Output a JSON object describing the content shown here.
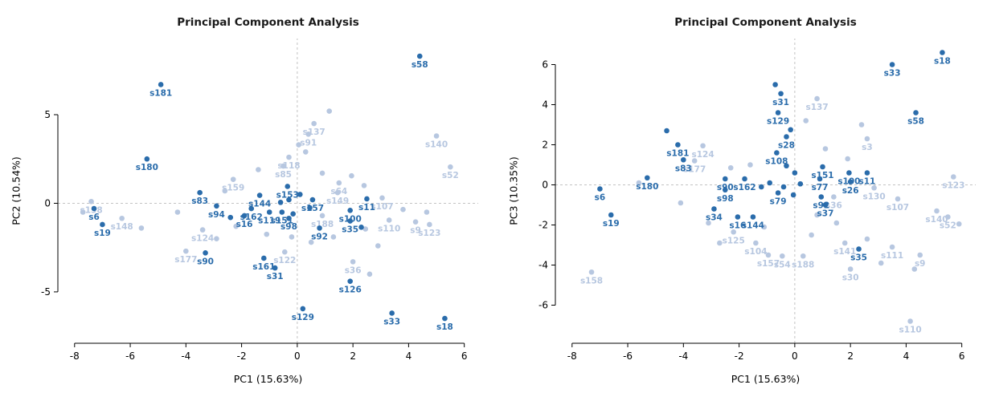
{
  "figure": {
    "background": "#ffffff",
    "accent_dark": "#2a6cab",
    "accent_light": "#b7c7e0"
  },
  "chart_data": [
    {
      "type": "scatter",
      "title": "Principal Component Analysis",
      "xlabel": "PC1 (15.63%)",
      "ylabel": "PC2 (10.54%)",
      "xlim": [
        -8.6,
        6.5
      ],
      "ylim": [
        -7.9,
        9.3
      ],
      "xticks": [
        -8,
        -6,
        -4,
        -2,
        0,
        2,
        4,
        6
      ],
      "yticks": [
        -5,
        0,
        5
      ],
      "grid": false,
      "zero_lines": true,
      "legend": "none",
      "series": [
        {
          "name": "background-samples-unlabeled",
          "color": "#b7c7e0",
          "points": [
            {
              "x": 1.15,
              "y": 5.2
            },
            {
              "x": 0.05,
              "y": 3.3
            },
            {
              "x": -1.4,
              "y": 1.9
            },
            {
              "x": -2.6,
              "y": 0.7
            },
            {
              "x": -4.3,
              "y": -0.5
            },
            {
              "x": -5.6,
              "y": -1.4
            },
            {
              "x": -2.9,
              "y": -2.0
            },
            {
              "x": -2.2,
              "y": -1.3
            },
            {
              "x": -1.1,
              "y": -1.75
            },
            {
              "x": -0.2,
              "y": -1.9
            },
            {
              "x": 0.5,
              "y": -2.2
            },
            {
              "x": 1.3,
              "y": -1.9
            },
            {
              "x": 2.45,
              "y": -1.45
            },
            {
              "x": 2.9,
              "y": -2.4
            },
            {
              "x": 3.8,
              "y": -0.35
            },
            {
              "x": 4.65,
              "y": -0.5
            },
            {
              "x": 0.9,
              "y": 1.7
            },
            {
              "x": 1.95,
              "y": 1.55
            },
            {
              "x": 2.4,
              "y": 1.0
            },
            {
              "x": 0.3,
              "y": 2.9
            },
            {
              "x": -7.7,
              "y": -0.5
            },
            {
              "x": 2.6,
              "y": -4.0
            }
          ]
        },
        {
          "name": "background-samples",
          "color": "#b7c7e0",
          "points": [
            {
              "label": "s137",
              "x": 0.6,
              "y": 4.5
            },
            {
              "label": "s91",
              "x": 0.4,
              "y": 3.9
            },
            {
              "label": "s140",
              "x": 5.0,
              "y": 3.8
            },
            {
              "label": "s52",
              "x": 5.5,
              "y": 2.05
            },
            {
              "label": "s118",
              "x": -0.3,
              "y": 2.6
            },
            {
              "label": "s85",
              "x": -0.5,
              "y": 2.1
            },
            {
              "label": "s159",
              "x": -2.3,
              "y": 1.35
            },
            {
              "label": "s158",
              "x": -7.4,
              "y": 0.1
            },
            {
              "label": "s148",
              "x": -6.3,
              "y": -0.85
            },
            {
              "label": "s124",
              "x": -3.4,
              "y": -1.5
            },
            {
              "label": "s177",
              "x": -4.0,
              "y": -2.7
            },
            {
              "label": "s122",
              "x": -0.45,
              "y": -2.75
            },
            {
              "label": "s36",
              "x": 2.0,
              "y": -3.3
            },
            {
              "label": "s64",
              "x": 1.5,
              "y": 1.15
            },
            {
              "label": "s149",
              "x": 1.45,
              "y": 0.6
            },
            {
              "label": "s107",
              "x": 3.05,
              "y": 0.3
            },
            {
              "label": "s110",
              "x": 3.3,
              "y": -0.95
            },
            {
              "label": "s9",
              "x": 4.25,
              "y": -1.05
            },
            {
              "label": "s123",
              "x": 4.75,
              "y": -1.2
            },
            {
              "label": "s188",
              "x": 0.9,
              "y": -0.7
            }
          ]
        },
        {
          "name": "highlighted-samples-unlabeled",
          "color": "#2a6cab",
          "points": [
            {
              "x": -2.4,
              "y": -0.8
            },
            {
              "x": 2.3,
              "y": -1.35
            },
            {
              "x": -0.3,
              "y": 0.2
            },
            {
              "x": 0.1,
              "y": 0.5
            },
            {
              "x": -0.6,
              "y": 0.05
            },
            {
              "x": 0.45,
              "y": -0.25
            },
            {
              "x": -0.15,
              "y": -0.6
            }
          ]
        },
        {
          "name": "highlighted-samples",
          "color": "#2a6cab",
          "points": [
            {
              "label": "s58",
              "x": 4.4,
              "y": 8.3
            },
            {
              "label": "s181",
              "x": -4.9,
              "y": 6.7
            },
            {
              "label": "s180",
              "x": -5.4,
              "y": 2.5
            },
            {
              "label": "s83",
              "x": -3.5,
              "y": 0.6
            },
            {
              "label": "s94",
              "x": -2.9,
              "y": -0.15
            },
            {
              "label": "s6",
              "x": -7.3,
              "y": -0.3
            },
            {
              "label": "s19",
              "x": -7.0,
              "y": -1.2
            },
            {
              "label": "s90",
              "x": -3.3,
              "y": -2.8
            },
            {
              "label": "s161",
              "x": -1.2,
              "y": -3.1
            },
            {
              "label": "s31",
              "x": -0.8,
              "y": -3.65
            },
            {
              "label": "s129",
              "x": 0.2,
              "y": -5.95
            },
            {
              "label": "s126",
              "x": 1.9,
              "y": -4.4
            },
            {
              "label": "s33",
              "x": 3.4,
              "y": -6.2
            },
            {
              "label": "s18",
              "x": 5.3,
              "y": -6.5
            },
            {
              "label": "s92",
              "x": 0.8,
              "y": -1.4
            },
            {
              "label": "s35",
              "x": 1.9,
              "y": -1.0
            },
            {
              "label": "s100",
              "x": 1.9,
              "y": -0.4
            },
            {
              "label": "s11",
              "x": 2.5,
              "y": 0.25
            },
            {
              "label": "s144",
              "x": -1.35,
              "y": 0.45
            },
            {
              "label": "s162",
              "x": -1.65,
              "y": -0.3
            },
            {
              "label": "s16",
              "x": -1.9,
              "y": -0.7
            },
            {
              "label": "s119",
              "x": -1.0,
              "y": -0.5
            },
            {
              "label": "s151",
              "x": -0.55,
              "y": -0.5
            },
            {
              "label": "s153",
              "x": -0.35,
              "y": 0.95
            },
            {
              "label": "s157",
              "x": 0.55,
              "y": 0.2
            },
            {
              "label": "s98",
              "x": -0.3,
              "y": -0.85
            }
          ]
        }
      ]
    },
    {
      "type": "scatter",
      "title": "Principal Component Analysis",
      "xlabel": "PC1 (15.63%)",
      "ylabel": "PC3 (10.35%)",
      "xlim": [
        -8.6,
        6.5
      ],
      "ylim": [
        -7.9,
        7.3
      ],
      "xticks": [
        -8,
        -6,
        -4,
        -2,
        0,
        2,
        4,
        6
      ],
      "yticks": [
        -6,
        -4,
        -2,
        0,
        2,
        4,
        6
      ],
      "grid": false,
      "zero_lines": true,
      "legend": "none",
      "series": [
        {
          "name": "background-samples-unlabeled",
          "color": "#b7c7e0",
          "points": [
            {
              "x": -5.6,
              "y": 0.1
            },
            {
              "x": -4.1,
              "y": -0.9
            },
            {
              "x": -3.1,
              "y": -1.9
            },
            {
              "x": -2.7,
              "y": -2.9
            },
            {
              "x": -1.1,
              "y": -2.1
            },
            {
              "x": 0.6,
              "y": -2.5
            },
            {
              "x": 1.5,
              "y": -1.9
            },
            {
              "x": 2.6,
              "y": -2.7
            },
            {
              "x": 3.1,
              "y": -3.9
            },
            {
              "x": 4.3,
              "y": -4.2
            },
            {
              "x": 1.1,
              "y": 1.8
            },
            {
              "x": 1.9,
              "y": 1.3
            },
            {
              "x": -1.6,
              "y": 1.0
            },
            {
              "x": -2.3,
              "y": 0.85
            },
            {
              "x": 0.4,
              "y": 3.2
            },
            {
              "x": 2.4,
              "y": 3.0
            },
            {
              "x": 5.9,
              "y": -1.95
            },
            {
              "x": 0.8,
              "y": -1.5
            }
          ]
        },
        {
          "name": "background-samples",
          "color": "#b7c7e0",
          "points": [
            {
              "label": "s137",
              "x": 0.8,
              "y": 4.3
            },
            {
              "label": "s124",
              "x": -3.3,
              "y": 1.95
            },
            {
              "label": "s177",
              "x": -3.6,
              "y": 1.2
            },
            {
              "label": "s3",
              "x": 2.6,
              "y": 2.3
            },
            {
              "label": "s123",
              "x": 5.7,
              "y": 0.4
            },
            {
              "label": "s107",
              "x": 3.7,
              "y": -0.7
            },
            {
              "label": "s130",
              "x": 2.85,
              "y": -0.15
            },
            {
              "label": "s140",
              "x": 5.1,
              "y": -1.3
            },
            {
              "label": "s52",
              "x": 5.5,
              "y": -1.6
            },
            {
              "label": "s141",
              "x": 1.8,
              "y": -2.9
            },
            {
              "label": "s111",
              "x": 3.5,
              "y": -3.1
            },
            {
              "label": "s9",
              "x": 4.5,
              "y": -3.5
            },
            {
              "label": "s30",
              "x": 2.0,
              "y": -4.2
            },
            {
              "label": "s104",
              "x": -1.4,
              "y": -2.9
            },
            {
              "label": "s125",
              "x": -2.2,
              "y": -2.35
            },
            {
              "label": "s157",
              "x": -0.95,
              "y": -3.5
            },
            {
              "label": "s54",
              "x": -0.45,
              "y": -3.55
            },
            {
              "label": "s188",
              "x": 0.3,
              "y": -3.55
            },
            {
              "label": "s158",
              "x": -7.3,
              "y": -4.35
            },
            {
              "label": "s110",
              "x": 4.15,
              "y": -6.8
            },
            {
              "label": "s36",
              "x": 1.4,
              "y": -0.6
            }
          ]
        },
        {
          "name": "highlighted-samples-unlabeled",
          "color": "#2a6cab",
          "points": [
            {
              "x": -0.7,
              "y": 5.0
            },
            {
              "x": -4.6,
              "y": 2.7
            },
            {
              "x": -0.15,
              "y": 2.75
            },
            {
              "x": -0.3,
              "y": 0.95
            },
            {
              "x": 0.0,
              "y": 0.6
            },
            {
              "x": -0.9,
              "y": 0.1
            },
            {
              "x": -0.4,
              "y": -0.1
            },
            {
              "x": 0.2,
              "y": 0.05
            },
            {
              "x": -1.2,
              "y": -0.1
            },
            {
              "x": -0.05,
              "y": -0.5
            }
          ]
        },
        {
          "name": "highlighted-samples",
          "color": "#2a6cab",
          "points": [
            {
              "label": "s18",
              "x": 5.3,
              "y": 6.6
            },
            {
              "label": "s33",
              "x": 3.5,
              "y": 6.0
            },
            {
              "label": "s31",
              "x": -0.5,
              "y": 4.55
            },
            {
              "label": "s129",
              "x": -0.6,
              "y": 3.6
            },
            {
              "label": "s58",
              "x": 4.35,
              "y": 3.6
            },
            {
              "label": "s181",
              "x": -4.2,
              "y": 2.0
            },
            {
              "label": "s83",
              "x": -4.0,
              "y": 1.25
            },
            {
              "label": "s180",
              "x": -5.3,
              "y": 0.35
            },
            {
              "label": "s6",
              "x": -7.0,
              "y": -0.2
            },
            {
              "label": "s19",
              "x": -6.6,
              "y": -1.5
            },
            {
              "label": "s90",
              "x": -2.5,
              "y": 0.3
            },
            {
              "label": "s98",
              "x": -2.5,
              "y": -0.25
            },
            {
              "label": "s34",
              "x": -2.9,
              "y": -1.2
            },
            {
              "label": "s16",
              "x": -2.05,
              "y": -1.6
            },
            {
              "label": "s144",
              "x": -1.5,
              "y": -1.6
            },
            {
              "label": "s162",
              "x": -1.8,
              "y": 0.3
            },
            {
              "label": "s28",
              "x": -0.3,
              "y": 2.4
            },
            {
              "label": "s108",
              "x": -0.65,
              "y": 1.6
            },
            {
              "label": "s79",
              "x": -0.6,
              "y": -0.4
            },
            {
              "label": "s151",
              "x": 1.0,
              "y": 0.9
            },
            {
              "label": "s100",
              "x": 1.95,
              "y": 0.6
            },
            {
              "label": "s11",
              "x": 2.6,
              "y": 0.6
            },
            {
              "label": "s77",
              "x": 0.9,
              "y": 0.3
            },
            {
              "label": "s26",
              "x": 2.0,
              "y": 0.15
            },
            {
              "label": "s92",
              "x": 0.95,
              "y": -0.6
            },
            {
              "label": "s37",
              "x": 1.1,
              "y": -1.0
            },
            {
              "label": "s35",
              "x": 2.3,
              "y": -3.2
            }
          ]
        }
      ]
    }
  ]
}
